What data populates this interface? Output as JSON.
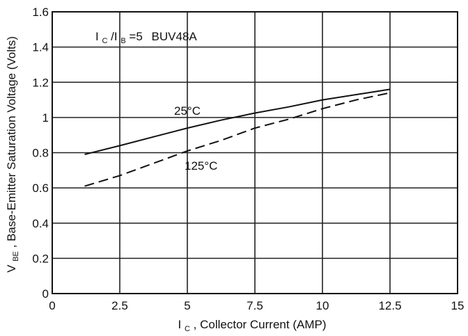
{
  "chart_data": {
    "type": "line",
    "title": "",
    "xlabel": {
      "main": "I",
      "sub": "C",
      "rest": " , Collector Current (AMP)"
    },
    "ylabel": {
      "main": "V",
      "sub": "BE",
      "rest": ", Base-Emitter Saturation Voltage (Volts)"
    },
    "xlim": [
      0,
      15
    ],
    "ylim": [
      0,
      1.6
    ],
    "xticks": [
      0,
      2.5,
      5,
      7.5,
      10,
      12.5,
      15
    ],
    "xtick_labels": [
      "0",
      "2.5",
      "5",
      "7.5",
      "10",
      "12.5",
      "15"
    ],
    "yticks": [
      0,
      0.2,
      0.4,
      0.6,
      0.8,
      1,
      1.2,
      1.4,
      1.6
    ],
    "ytick_labels": [
      "0",
      "0.2",
      "0.4",
      "0.6",
      "0.8",
      "1",
      "1.2",
      "1.4",
      "1.6"
    ],
    "grid": true,
    "annotation": {
      "text_i": "I",
      "sub_c": "C",
      "slash": "/I",
      "sub_b": "B",
      "condition": "=5",
      "part": "BUV48A"
    },
    "series": [
      {
        "name": "25°C",
        "style": "solid",
        "color": "#111111",
        "x": [
          1.2,
          2.5,
          3.75,
          5,
          6.25,
          7.5,
          8.75,
          10,
          11.25,
          12.5
        ],
        "y": [
          0.79,
          0.84,
          0.89,
          0.94,
          0.985,
          1.025,
          1.06,
          1.1,
          1.13,
          1.16
        ]
      },
      {
        "name": "125°C",
        "style": "dashed",
        "color": "#111111",
        "x": [
          1.2,
          2.5,
          3.75,
          5,
          6.25,
          7.5,
          8.75,
          10,
          11.25,
          12.5
        ],
        "y": [
          0.61,
          0.67,
          0.74,
          0.81,
          0.87,
          0.94,
          0.99,
          1.05,
          1.1,
          1.14
        ]
      }
    ]
  }
}
